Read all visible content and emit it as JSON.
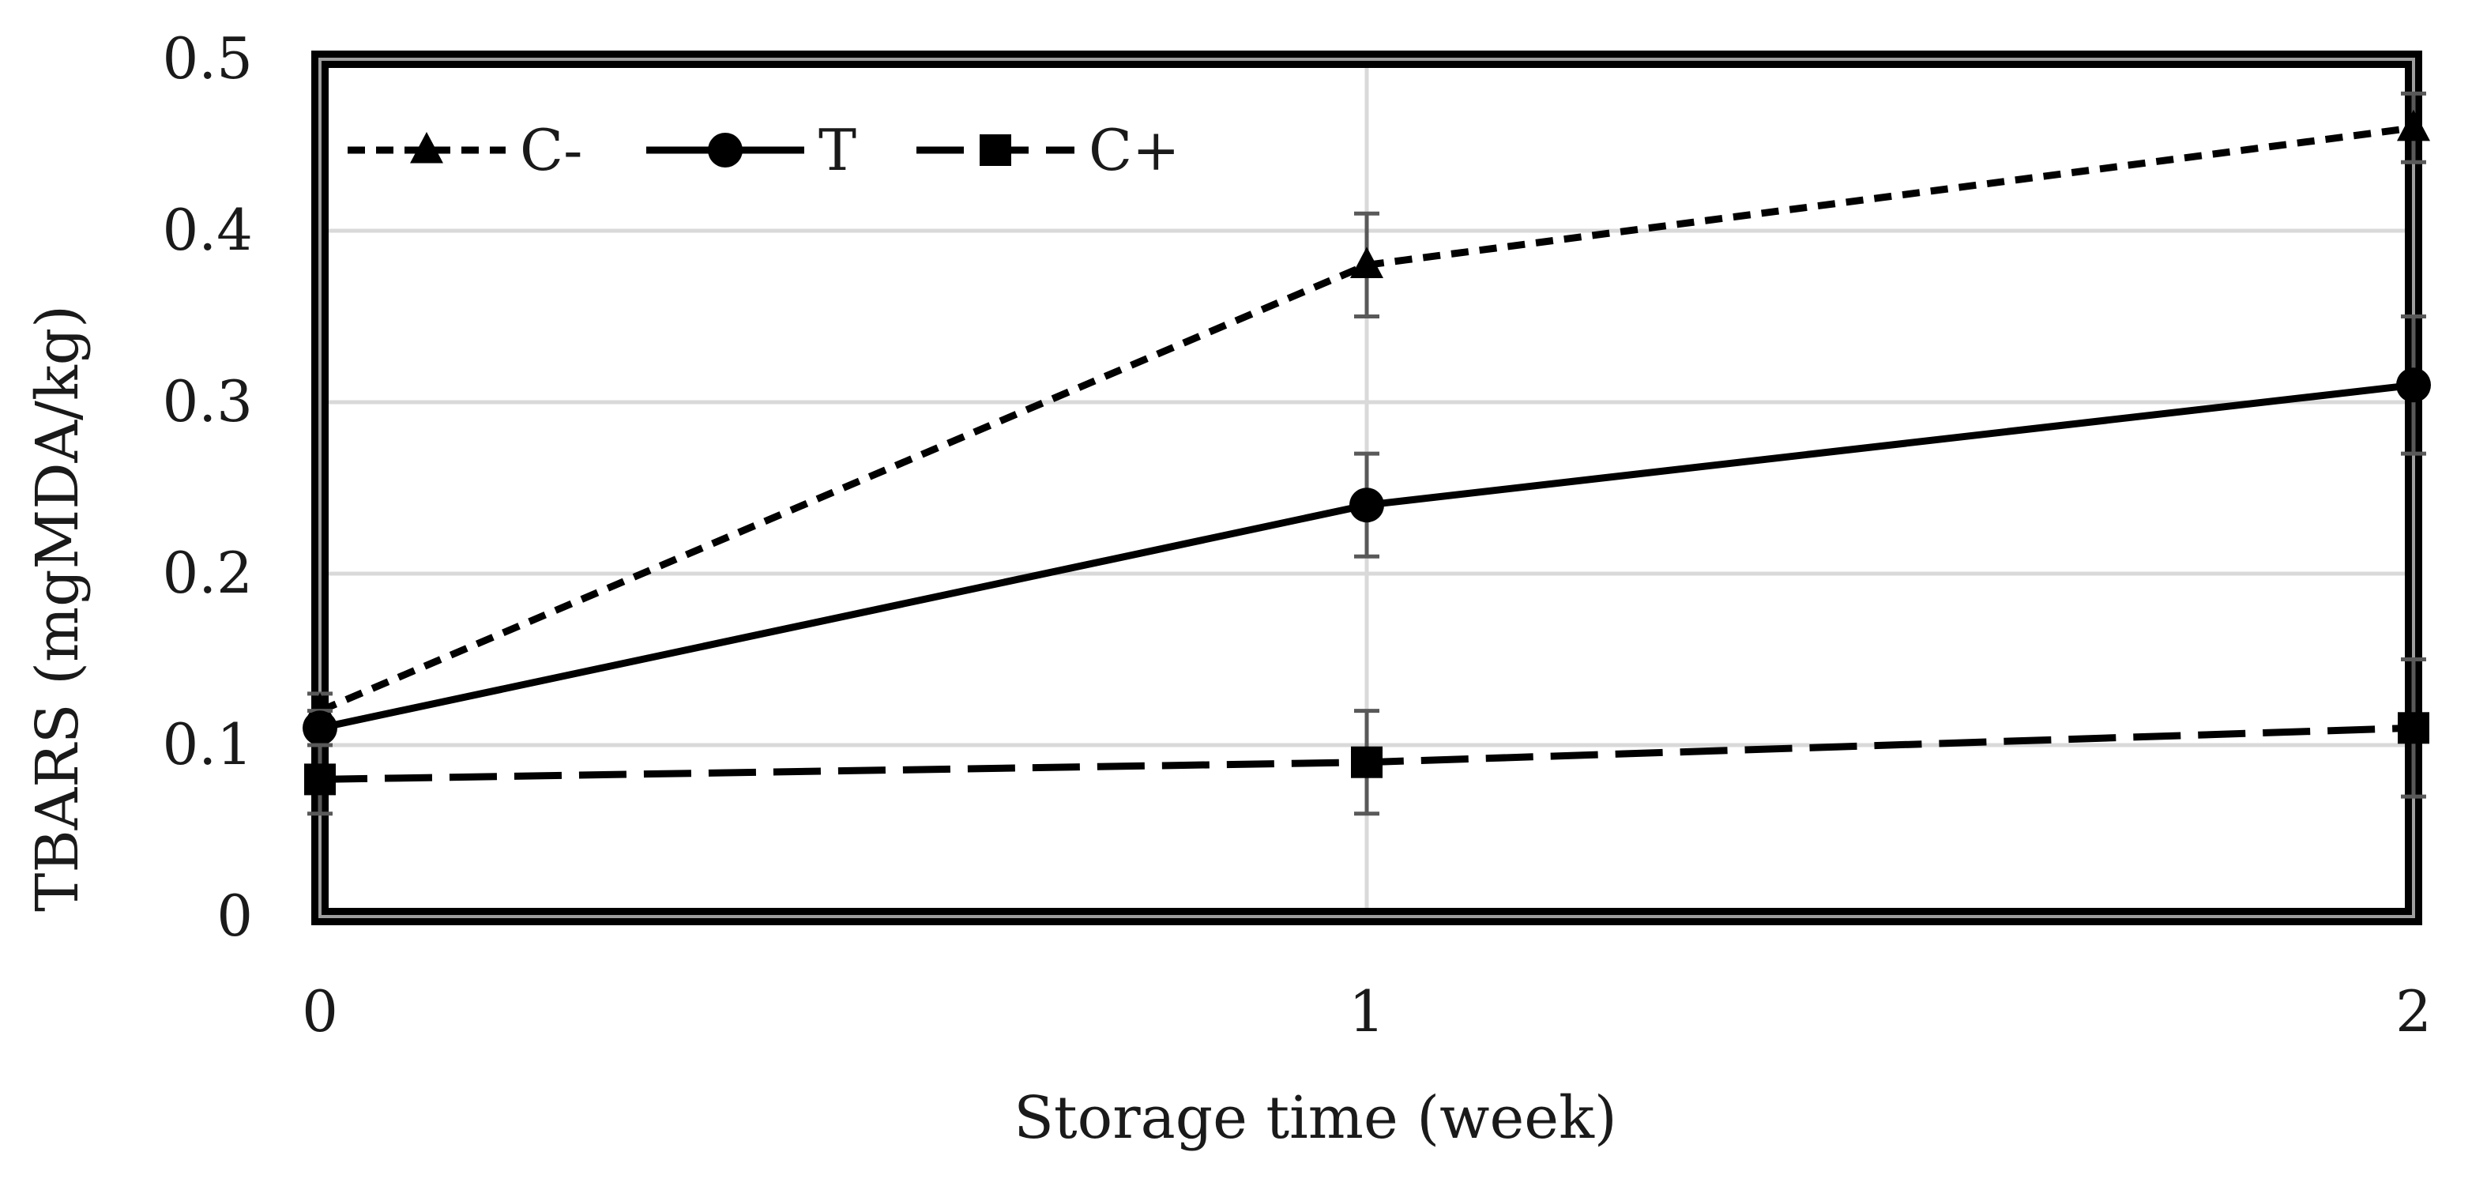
{
  "chart_data": {
    "type": "line",
    "title": "",
    "xlabel": "Storage time (week)",
    "ylabel": "TBARS (mgMDA/kg)",
    "x": [
      0,
      1,
      2
    ],
    "x_tick_labels": [
      "0",
      "1",
      "2"
    ],
    "xlim": [
      0,
      2
    ],
    "ylim": [
      0,
      0.5
    ],
    "y_ticks": [
      0,
      0.1,
      0.2,
      0.3,
      0.4,
      0.5
    ],
    "y_tick_labels": [
      "0",
      "0.1",
      "0.2",
      "0.3",
      "0.4",
      "0.5"
    ],
    "grid": true,
    "legend_position": "top-left",
    "series": [
      {
        "name": "C-",
        "values": [
          0.12,
          0.38,
          0.46
        ],
        "errors": [
          0.01,
          0.03,
          0.02
        ],
        "marker": "triangle",
        "line_style": "dotted",
        "color": "#000000"
      },
      {
        "name": "T",
        "values": [
          0.11,
          0.24,
          0.31
        ],
        "errors": [
          0.01,
          0.03,
          0.04
        ],
        "marker": "circle",
        "line_style": "solid",
        "color": "#000000"
      },
      {
        "name": "C+",
        "values": [
          0.08,
          0.09,
          0.11
        ],
        "errors": [
          0.02,
          0.03,
          0.04
        ],
        "marker": "square",
        "line_style": "long-dash",
        "color": "#000000"
      }
    ],
    "colors": {
      "line": "#000000",
      "error_bar": "#595959",
      "grid": "#d9d9d9",
      "frame_outer": "#000000",
      "frame_inner": "#9e9e9e"
    }
  }
}
